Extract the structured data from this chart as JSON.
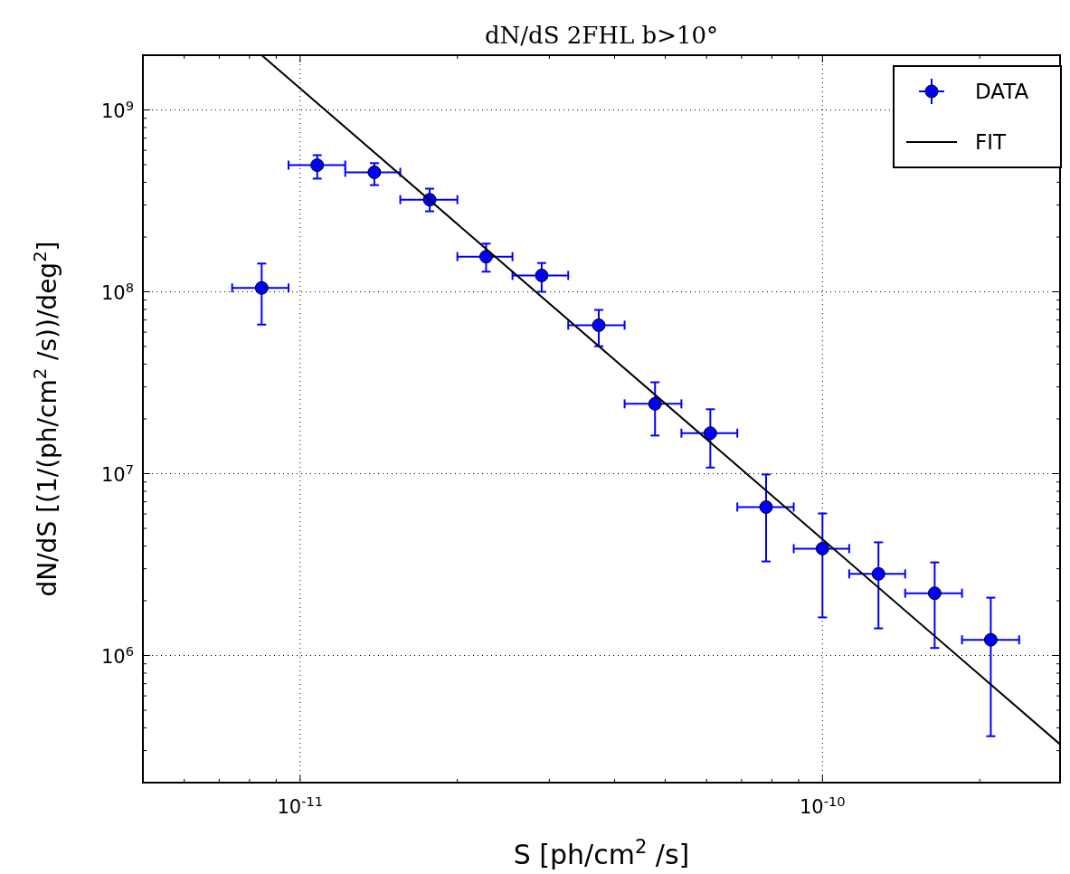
{
  "chart_data": {
    "type": "scatter",
    "title": "dN/dS 2FHL b>10°",
    "xlabel": "S [ph/cm$^{2}$ /s]",
    "ylabel": "dN/dS [(1/(ph/cm$^{2}$ /s))/deg$^{2}$]",
    "log": "xy",
    "grid": true,
    "legend": "top right",
    "xlim": [
      5e-12,
      2.85e-10
    ],
    "ylim": [
      200000.0,
      2000000000.0
    ],
    "xticks": [
      {
        "value": 6e-12,
        "label": null
      },
      {
        "value": 7e-12,
        "label": null
      },
      {
        "value": 8e-12,
        "label": null
      },
      {
        "value": 9e-12,
        "label": null
      },
      {
        "value": 1e-11,
        "label": "10$^{-11}$"
      },
      {
        "value": 2e-11,
        "label": null
      },
      {
        "value": 3e-11,
        "label": null
      },
      {
        "value": 4e-11,
        "label": null
      },
      {
        "value": 5e-11,
        "label": null
      },
      {
        "value": 6e-11,
        "label": null
      },
      {
        "value": 7e-11,
        "label": null
      },
      {
        "value": 8e-11,
        "label": null
      },
      {
        "value": 9e-11,
        "label": null
      },
      {
        "value": 1e-10,
        "label": "10$^{-10}$"
      },
      {
        "value": 2e-10,
        "label": null
      }
    ],
    "yticks": [
      {
        "value": 300000.0,
        "label": null
      },
      {
        "value": 400000.0,
        "label": null
      },
      {
        "value": 500000.0,
        "label": null
      },
      {
        "value": 600000.0,
        "label": null
      },
      {
        "value": 700000.0,
        "label": null
      },
      {
        "value": 800000.0,
        "label": null
      },
      {
        "value": 900000.0,
        "label": null
      },
      {
        "value": 1000000.0,
        "label": "10$^{6}$"
      },
      {
        "value": 2000000.0,
        "label": null
      },
      {
        "value": 3000000.0,
        "label": null
      },
      {
        "value": 4000000.0,
        "label": null
      },
      {
        "value": 5000000.0,
        "label": null
      },
      {
        "value": 6000000.0,
        "label": null
      },
      {
        "value": 7000000.0,
        "label": null
      },
      {
        "value": 8000000.0,
        "label": null
      },
      {
        "value": 9000000.0,
        "label": null
      },
      {
        "value": 10000000.0,
        "label": "10$^{7}$"
      },
      {
        "value": 20000000.0,
        "label": null
      },
      {
        "value": 30000000.0,
        "label": null
      },
      {
        "value": 40000000.0,
        "label": null
      },
      {
        "value": 50000000.0,
        "label": null
      },
      {
        "value": 60000000.0,
        "label": null
      },
      {
        "value": 70000000.0,
        "label": null
      },
      {
        "value": 80000000.0,
        "label": null
      },
      {
        "value": 90000000.0,
        "label": null
      },
      {
        "value": 100000000.0,
        "label": "10$^{8}$"
      },
      {
        "value": 200000000.0,
        "label": null
      },
      {
        "value": 300000000.0,
        "label": null
      },
      {
        "value": 400000000.0,
        "label": null
      },
      {
        "value": 500000000.0,
        "label": null
      },
      {
        "value": 600000000.0,
        "label": null
      },
      {
        "value": 700000000.0,
        "label": null
      },
      {
        "value": 800000000.0,
        "label": null
      },
      {
        "value": 900000000.0,
        "label": null
      },
      {
        "value": 1000000000.0,
        "label": "10$^{9}$"
      }
    ],
    "series": [
      {
        "name": "DATA",
        "marker": "circle",
        "color": "#0000ff",
        "x": [
          8.44e-12,
          1.078e-11,
          1.387e-11,
          1.77e-11,
          2.27e-11,
          2.9e-11,
          3.73e-11,
          4.78e-11,
          6.1e-11,
          7.8e-11,
          1e-10,
          1.28e-10,
          1.64e-10,
          2.1e-10
        ],
        "values": [
          105000000.0,
          497000000.0,
          454000000.0,
          321000000.0,
          156000000.0,
          123000000.0,
          65500000.0,
          24200000.0,
          16700000.0,
          6550000.0,
          3870000.0,
          2810000.0,
          2200000.0,
          1220000.0
        ],
        "errors": [
          [
            66000000.0,
            143000000.0
          ],
          [
            419000000.0,
            564000000.0
          ],
          [
            386000000.0,
            510000000.0
          ],
          [
            277000000.0,
            369000000.0
          ],
          [
            129000000.0,
            184000000.0
          ],
          [
            100000000.0,
            144000000.0
          ],
          [
            50200000.0,
            79500000.0
          ],
          [
            16200000.0,
            31800000.0
          ],
          [
            10800000.0,
            22600000.0
          ],
          [
            3290000.0,
            9900000.0
          ],
          [
            1620000.0,
            6040000.0
          ],
          [
            1410000.0,
            4190000.0
          ],
          [
            1100000.0,
            3250000.0
          ],
          [
            360000.0,
            2080000.0
          ]
        ],
        "xerrors": [
          [
            7.41e-12,
            9.5e-12
          ],
          [
            9.5e-12,
            1.22e-11
          ],
          [
            1.22e-11,
            1.555e-11
          ],
          [
            1.555e-11,
            2e-11
          ],
          [
            2e-11,
            2.55e-11
          ],
          [
            2.55e-11,
            3.26e-11
          ],
          [
            3.26e-11,
            4.18e-11
          ],
          [
            4.18e-11,
            5.37e-11
          ],
          [
            5.37e-11,
            6.87e-11
          ],
          [
            6.87e-11,
            8.81e-11
          ],
          [
            8.81e-11,
            1.125e-10
          ],
          [
            1.125e-10,
            1.44e-10
          ],
          [
            1.44e-10,
            1.85e-10
          ],
          [
            1.85e-10,
            2.38e-10
          ]
        ]
      },
      {
        "name": "FIT",
        "type": "line",
        "color": "#000000",
        "line_style": "solid",
        "x": [
          8.44e-12,
          2.85e-10
        ],
        "values": [
          2000000000.0,
          325000.0
        ]
      }
    ]
  }
}
